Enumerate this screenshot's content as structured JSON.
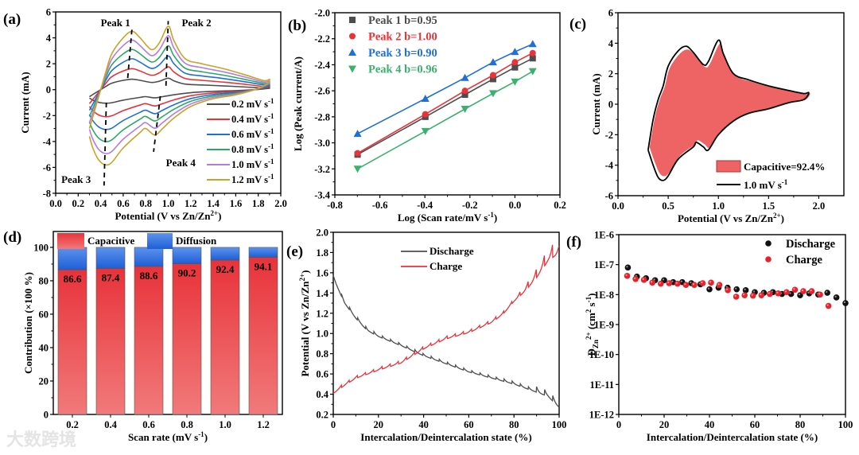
{
  "watermark": "大数跨境",
  "colors": {
    "c02": "#4d4d4d",
    "c04": "#e8333a",
    "c06": "#1f6fd6",
    "c08": "#2aa866",
    "c10": "#b77be0",
    "c12": "#c9a227",
    "red": "#e8333a",
    "blue": "#1f6fd6",
    "green": "#3cb06f",
    "gray": "#4d4d4d"
  },
  "chart_data": [
    {
      "panel": "(a)",
      "type": "line",
      "xlabel": [
        {
          "t": "Potential (V vs Zn/Zn"
        },
        {
          "t": "2+",
          "s": "sup"
        },
        {
          "t": ")"
        }
      ],
      "ylabel": [
        {
          "t": "Current (mA)"
        }
      ],
      "xlim": [
        0,
        2.0
      ],
      "ylim": [
        -8,
        6
      ],
      "xticks": [
        "0.0",
        "0.2",
        "0.4",
        "0.6",
        "0.8",
        "1.0",
        "1.2",
        "1.4",
        "1.6",
        "1.8",
        "2.0"
      ],
      "yticks": [
        "-8",
        "-6",
        "-4",
        "-2",
        "0",
        "2",
        "4",
        "6"
      ],
      "base_upper": [
        [
          0.3,
          -3.0
        ],
        [
          0.35,
          -1.5
        ],
        [
          0.4,
          0.0
        ],
        [
          0.45,
          1.5
        ],
        [
          0.5,
          2.8
        ],
        [
          0.6,
          4.0
        ],
        [
          0.68,
          4.5
        ],
        [
          0.75,
          4.0
        ],
        [
          0.85,
          3.1
        ],
        [
          0.92,
          3.6
        ],
        [
          1.0,
          4.9
        ],
        [
          1.05,
          3.8
        ],
        [
          1.15,
          2.4
        ],
        [
          1.3,
          2.0
        ],
        [
          1.5,
          1.6
        ],
        [
          1.7,
          1.1
        ],
        [
          1.85,
          0.7
        ],
        [
          1.9,
          0.8
        ]
      ],
      "base_lower": [
        [
          1.9,
          0.6
        ],
        [
          1.8,
          0.1
        ],
        [
          1.6,
          -0.4
        ],
        [
          1.4,
          -0.7
        ],
        [
          1.2,
          -1.3
        ],
        [
          1.05,
          -2.2
        ],
        [
          0.95,
          -3.0
        ],
        [
          0.88,
          -3.5
        ],
        [
          0.8,
          -3.0
        ],
        [
          0.75,
          -3.3
        ],
        [
          0.6,
          -4.5
        ],
        [
          0.5,
          -5.6
        ],
        [
          0.44,
          -5.8
        ],
        [
          0.38,
          -5.4
        ],
        [
          0.33,
          -4.5
        ],
        [
          0.3,
          -3.6
        ]
      ],
      "series": [
        {
          "name": "0.2 mV s",
          "sup": "-1",
          "scale": 0.18,
          "color": "#4d4d4d"
        },
        {
          "name": "0.4 mV s",
          "sup": "-1",
          "scale": 0.36,
          "color": "#e8333a"
        },
        {
          "name": "0.6 mV s",
          "sup": "-1",
          "scale": 0.53,
          "color": "#1f6fd6"
        },
        {
          "name": "0.8 mV s",
          "sup": "-1",
          "scale": 0.69,
          "color": "#2aa866"
        },
        {
          "name": "1.0 mV s",
          "sup": "-1",
          "scale": 0.85,
          "color": "#b77be0"
        },
        {
          "name": "1.2 mV s",
          "sup": "-1",
          "scale": 1.0,
          "color": "#c9a227"
        }
      ],
      "peak_lines": [
        [
          [
            0.64,
            0.9
          ],
          [
            0.68,
            4.9
          ]
        ],
        [
          [
            0.98,
            0.3
          ],
          [
            1.0,
            5.3
          ]
        ],
        [
          [
            0.45,
            -1.0
          ],
          [
            0.43,
            -7.4
          ]
        ],
        [
          [
            0.93,
            -0.5
          ],
          [
            0.87,
            -4.8
          ]
        ]
      ],
      "annotations": [
        {
          "text": "Peak 1",
          "x": 0.4,
          "y": 4.9
        },
        {
          "text": "Peak 2",
          "x": 1.12,
          "y": 4.9
        },
        {
          "text": "Peak 3",
          "x": 0.05,
          "y": -7.2
        },
        {
          "text": "Peak 4",
          "x": 0.98,
          "y": -5.9
        }
      ]
    },
    {
      "panel": "(b)",
      "type": "scatter",
      "xlabel": [
        {
          "t": "Log (Scan rate/mV s"
        },
        {
          "t": "-1",
          "s": "sup"
        },
        {
          "t": ")"
        }
      ],
      "ylabel": [
        {
          "t": "Log (Peak current/A)"
        }
      ],
      "xlim": [
        -0.8,
        0.2
      ],
      "ylim": [
        -3.4,
        -2.0
      ],
      "xticks": [
        "-0.8",
        "-0.6",
        "-0.4",
        "-0.2",
        "0.0",
        "0.2"
      ],
      "yticks": [
        "-3.4",
        "-3.2",
        "-3.0",
        "-2.8",
        "-2.6",
        "-2.4",
        "-2.2",
        "-2.0"
      ],
      "x": [
        -0.699,
        -0.398,
        -0.222,
        -0.097,
        0.0,
        0.079
      ],
      "series": [
        {
          "name": "Peak 1 b=0.95",
          "marker": "square",
          "color": "#4d4d4d",
          "values": [
            -3.09,
            -2.8,
            -2.63,
            -2.51,
            -2.42,
            -2.35
          ]
        },
        {
          "name": "Peak 2 b=1.00",
          "marker": "circle",
          "color": "#e8333a",
          "values": [
            -3.08,
            -2.78,
            -2.6,
            -2.48,
            -2.38,
            -2.31
          ]
        },
        {
          "name": "Peak 3 b=0.90",
          "marker": "triangle-up",
          "color": "#1f6fd6",
          "values": [
            -2.93,
            -2.66,
            -2.5,
            -2.38,
            -2.3,
            -2.24
          ]
        },
        {
          "name": "Peak 4 b=0.96",
          "marker": "triangle-down",
          "color": "#3cb06f",
          "values": [
            -3.2,
            -2.91,
            -2.74,
            -2.62,
            -2.53,
            -2.45
          ]
        }
      ]
    },
    {
      "panel": "(c)",
      "type": "area",
      "xlabel": [
        {
          "t": "Potential (V vs Zn/Zn"
        },
        {
          "t": "2+",
          "s": "sup"
        },
        {
          "t": ")"
        }
      ],
      "ylabel": [
        {
          "t": "Current (mA)"
        }
      ],
      "xlim": [
        0,
        2.25
      ],
      "ylim": [
        -6,
        6
      ],
      "xticks": [
        "0.0",
        "0.5",
        "1.0",
        "1.5",
        "2.0"
      ],
      "yticks": [
        "-6",
        "-4",
        "-2",
        "0",
        "2",
        "4",
        "6"
      ],
      "outline": [
        [
          0.3,
          -3.0
        ],
        [
          0.35,
          -1.0
        ],
        [
          0.4,
          0.3
        ],
        [
          0.45,
          1.2
        ],
        [
          0.5,
          2.5
        ],
        [
          0.6,
          3.5
        ],
        [
          0.68,
          3.8
        ],
        [
          0.75,
          3.4
        ],
        [
          0.85,
          2.6
        ],
        [
          0.9,
          2.8
        ],
        [
          1.0,
          4.2
        ],
        [
          1.05,
          3.3
        ],
        [
          1.15,
          2.0
        ],
        [
          1.3,
          1.6
        ],
        [
          1.5,
          1.2
        ],
        [
          1.7,
          0.9
        ],
        [
          1.85,
          0.7
        ],
        [
          1.9,
          0.75
        ],
        [
          1.85,
          0.3
        ],
        [
          1.7,
          0.1
        ],
        [
          1.5,
          -0.3
        ],
        [
          1.3,
          -0.6
        ],
        [
          1.15,
          -1.1
        ],
        [
          1.0,
          -2.0
        ],
        [
          0.9,
          -3.0
        ],
        [
          0.85,
          -2.8
        ],
        [
          0.78,
          -2.5
        ],
        [
          0.75,
          -2.8
        ],
        [
          0.6,
          -3.6
        ],
        [
          0.5,
          -4.7
        ],
        [
          0.45,
          -5.0
        ],
        [
          0.4,
          -4.8
        ],
        [
          0.35,
          -4.0
        ],
        [
          0.3,
          -3.0
        ]
      ],
      "capacitive_pct": 92.4,
      "legend": {
        "fill": "Capacitive=92.4%",
        "line": "1.0 mV s",
        "line_sup": "-1"
      },
      "fill_color": "#ee6464"
    },
    {
      "panel": "(d)",
      "type": "bar",
      "xlabel": [
        {
          "t": "Scan rate (mV s"
        },
        {
          "t": "-1",
          "s": "sup"
        },
        {
          "t": ")"
        }
      ],
      "ylabel": [
        {
          "t": "Contribution (×100 %)"
        }
      ],
      "ylim": [
        0,
        109.5
      ],
      "yticks": [
        "0",
        "20",
        "40",
        "60",
        "80",
        "100"
      ],
      "categories": [
        "0.2",
        "0.4",
        "0.6",
        "0.8",
        "1.0",
        "1.2"
      ],
      "series": [
        {
          "name": "Capacitive",
          "values": [
            86.6,
            87.4,
            88.6,
            90.2,
            92.4,
            94.1
          ]
        },
        {
          "name": "Diffusion",
          "values": [
            13.4,
            12.6,
            11.4,
            9.8,
            7.6,
            5.9
          ]
        }
      ],
      "data_labels": [
        "86.6",
        "87.4",
        "88.6",
        "90.2",
        "92.4",
        "94.1"
      ]
    },
    {
      "panel": "(e)",
      "type": "line",
      "xlabel": [
        {
          "t": "Intercalation/Deintercalation state (%)"
        }
      ],
      "ylabel": [
        {
          "t": "Potential (V vs Zn/Zn"
        },
        {
          "t": "2+",
          "s": "sup"
        },
        {
          "t": ")"
        }
      ],
      "xlim": [
        0,
        100
      ],
      "ylim": [
        0.2,
        2.0
      ],
      "xticks": [
        "0",
        "20",
        "40",
        "60",
        "80",
        "100"
      ],
      "yticks": [
        "0.2",
        "0.4",
        "0.6",
        "0.8",
        "1.0",
        "1.2",
        "1.4",
        "1.6",
        "1.8",
        "2.0"
      ],
      "series": [
        {
          "name": "Discharge",
          "color": "#4d4d4d",
          "points": [
            [
              0,
              1.55
            ],
            [
              5,
              1.3
            ],
            [
              10,
              1.15
            ],
            [
              15,
              1.03
            ],
            [
              20,
              0.97
            ],
            [
              30,
              0.88
            ],
            [
              40,
              0.78
            ],
            [
              50,
              0.7
            ],
            [
              60,
              0.62
            ],
            [
              70,
              0.56
            ],
            [
              80,
              0.5
            ],
            [
              90,
              0.42
            ],
            [
              95,
              0.38
            ],
            [
              100,
              0.27
            ]
          ]
        },
        {
          "name": "Charge",
          "color": "#e8333a",
          "points": [
            [
              0,
              0.42
            ],
            [
              5,
              0.5
            ],
            [
              10,
              0.57
            ],
            [
              20,
              0.65
            ],
            [
              30,
              0.72
            ],
            [
              40,
              0.86
            ],
            [
              50,
              0.96
            ],
            [
              60,
              1.02
            ],
            [
              70,
              1.12
            ],
            [
              75,
              1.2
            ],
            [
              80,
              1.33
            ],
            [
              85,
              1.45
            ],
            [
              90,
              1.6
            ],
            [
              95,
              1.78
            ],
            [
              100,
              1.88
            ]
          ]
        }
      ]
    },
    {
      "panel": "(f)",
      "type": "scatter",
      "xlabel": [
        {
          "t": "Intercalation/Deintercalation state (%)"
        }
      ],
      "ylabel": [
        {
          "t": "D"
        },
        {
          "t": "Zn",
          "s": "sub"
        },
        {
          "t": "2+",
          "s": "sup"
        },
        {
          "t": " (cm"
        },
        {
          "t": "2",
          "s": "sup"
        },
        {
          "t": " s"
        },
        {
          "t": "-1",
          "s": "sup"
        },
        {
          "t": ")"
        }
      ],
      "xlim": [
        0,
        100
      ],
      "ylim": [
        1e-12,
        1e-06
      ],
      "yscale": "log",
      "xticks": [
        "0",
        "20",
        "40",
        "60",
        "80",
        "100"
      ],
      "yticks": [
        "1E-12",
        "1E-11",
        "1E-10",
        "1E-9",
        "1E-8",
        "1E-7",
        "1E-6"
      ],
      "series": [
        {
          "name": "Discharge",
          "color": "#111111",
          "x": [
            4,
            8,
            12,
            16,
            20,
            24,
            28,
            32,
            36,
            40,
            44,
            48,
            52,
            56,
            60,
            64,
            68,
            72,
            76,
            80,
            84,
            88,
            92,
            96,
            100
          ],
          "values": [
            8e-08,
            4e-08,
            3.5e-08,
            3e-08,
            3e-08,
            2.6e-08,
            2.6e-08,
            2.4e-08,
            2.2e-08,
            1.5e-08,
            1.7e-08,
            1.7e-08,
            1.5e-08,
            1.4e-08,
            1.2e-08,
            1.15e-08,
            1.2e-08,
            1.05e-08,
            1.05e-08,
            9.5e-09,
            1.1e-08,
            1e-08,
            1.15e-08,
            8e-09,
            5.2e-09
          ]
        },
        {
          "name": "Charge",
          "color": "#e8222a",
          "x": [
            3.7,
            7.4,
            11.1,
            14.8,
            18.5,
            22.2,
            25.9,
            29.6,
            33.3,
            37,
            40.7,
            44.4,
            48.1,
            51.8,
            55.5,
            59.2,
            62.9,
            66.6,
            70.3,
            74,
            77.7,
            81.4,
            85.1,
            88.8,
            92.5
          ],
          "values": [
            4.2e-08,
            3.3e-08,
            3.1e-08,
            2.5e-08,
            2.3e-08,
            2.4e-08,
            2.3e-08,
            2.1e-08,
            2.1e-08,
            2.4e-08,
            2.5e-08,
            2.1e-08,
            1.4e-08,
            8.5e-09,
            9.5e-09,
            9.2e-09,
            9.5e-09,
            1.05e-08,
            1.1e-08,
            1.2e-08,
            1.45e-08,
            1.3e-08,
            1.3e-08,
            1e-08,
            4.2e-09
          ]
        }
      ]
    }
  ]
}
